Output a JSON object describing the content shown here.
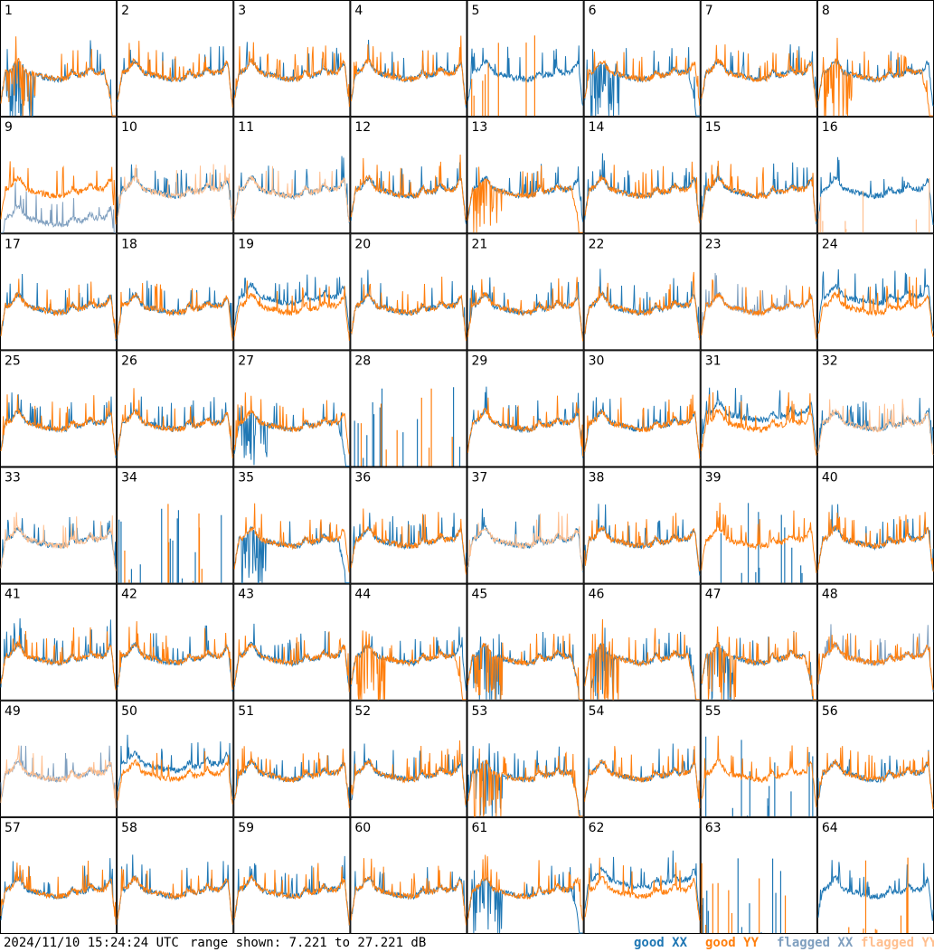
{
  "chart_data": {
    "type": "line",
    "layout": "8x8 small multiples of antenna spectra",
    "panels": [
      "1",
      "2",
      "3",
      "4",
      "5",
      "6",
      "7",
      "8",
      "9",
      "10",
      "11",
      "12",
      "13",
      "14",
      "15",
      "16",
      "17",
      "18",
      "19",
      "20",
      "21",
      "22",
      "23",
      "24",
      "25",
      "26",
      "27",
      "28",
      "29",
      "30",
      "31",
      "32",
      "33",
      "34",
      "35",
      "36",
      "37",
      "38",
      "39",
      "40",
      "41",
      "42",
      "43",
      "44",
      "45",
      "46",
      "47",
      "48",
      "49",
      "50",
      "51",
      "52",
      "53",
      "54",
      "55",
      "56",
      "57",
      "58",
      "59",
      "60",
      "61",
      "62",
      "63",
      "64"
    ],
    "series": [
      {
        "name": "good XX",
        "color": "#1f77b4"
      },
      {
        "name": "good YY",
        "color": "#ff7f0e"
      },
      {
        "name": "flagged XX",
        "color": "#7f9fbf"
      },
      {
        "name": "flagged YY",
        "color": "#ffbf8f"
      }
    ],
    "panel_states": {
      "flagged_xx": [
        "9",
        "23",
        "48",
        "49"
      ],
      "flagged_yy": [
        "10",
        "11",
        "16",
        "32",
        "33",
        "37",
        "49"
      ],
      "xx_dropouts": [
        "1",
        "6",
        "27",
        "35",
        "45",
        "46",
        "47",
        "53",
        "61"
      ],
      "yy_dropouts": [
        "1",
        "8",
        "13",
        "44",
        "45",
        "46",
        "47",
        "53",
        "63"
      ],
      "xx_dead": [
        "28",
        "34",
        "39",
        "55",
        "63"
      ],
      "yy_dead": [
        "5",
        "16",
        "28",
        "34",
        "63",
        "64"
      ],
      "xx_offset": [
        "19",
        "24",
        "31",
        "50",
        "62"
      ],
      "xx_low": [
        "9"
      ]
    },
    "ylim": [
      7.221,
      27.221
    ],
    "grid": false,
    "legend": "bottom-right"
  },
  "footer": {
    "timestamp": "2024/11/10 15:24:24 UTC",
    "range_text": "range shown: 7.221 to 27.221 dB"
  },
  "legend": [
    {
      "label": "good XX",
      "color": "#1f77b4"
    },
    {
      "label": "good YY",
      "color": "#ff7f0e"
    },
    {
      "label": "flagged XX",
      "color": "#7f9fbf"
    },
    {
      "label": "flagged YY",
      "color": "#ffbf8f"
    }
  ]
}
